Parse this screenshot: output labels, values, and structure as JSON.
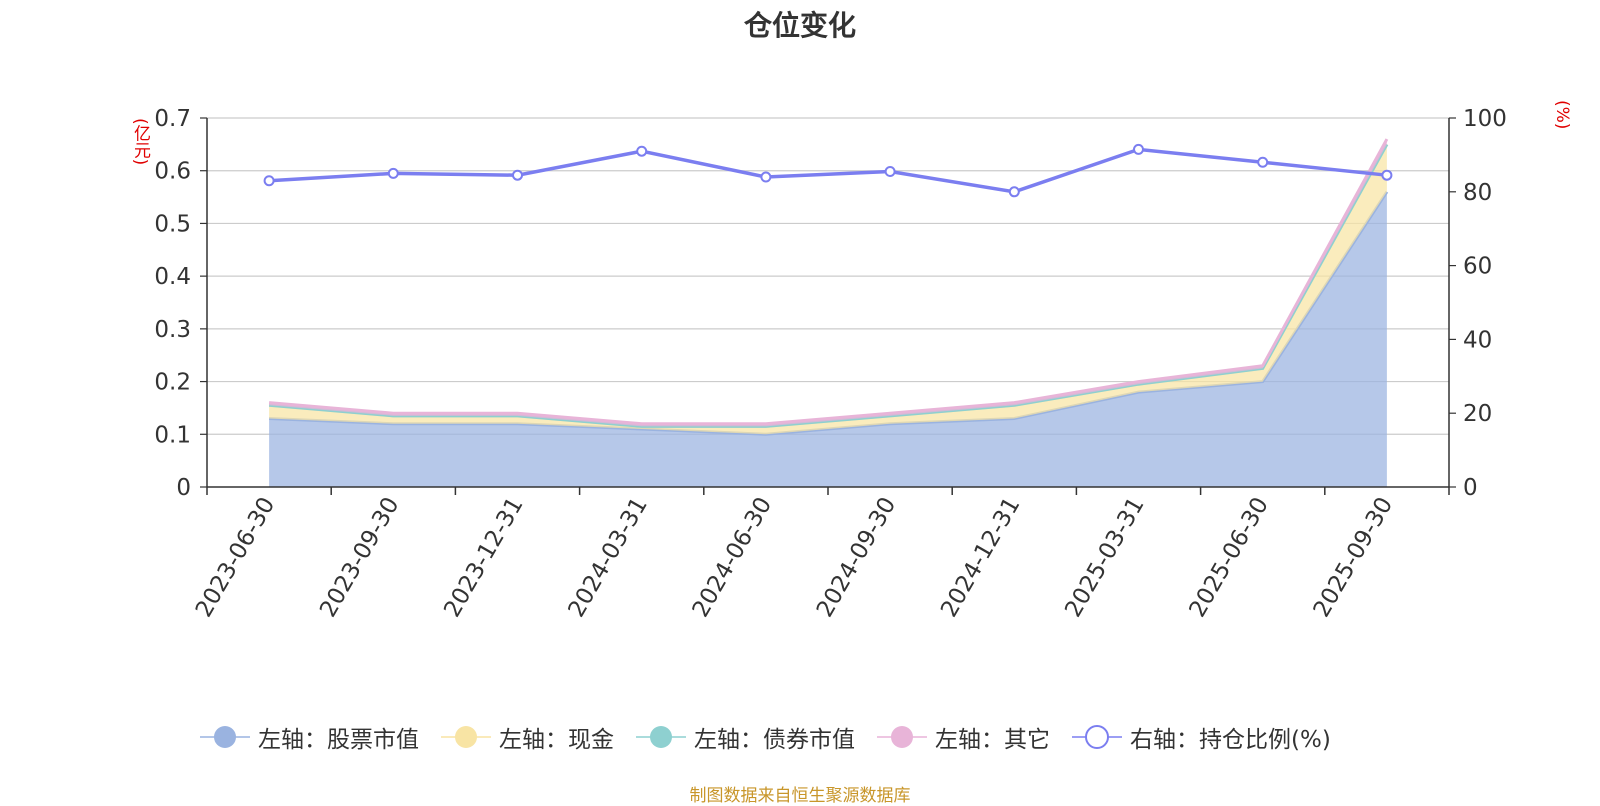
{
  "title": "仓位变化",
  "unit_left": "(亿元)",
  "unit_right": "(%)",
  "footer": "制图数据来自恒生聚源数据库",
  "legend": [
    {
      "label": "左轴：股票市值",
      "color": "#9ab3e0",
      "style": "filled"
    },
    {
      "label": "左轴：现金",
      "color": "#f8e4a4",
      "style": "filled"
    },
    {
      "label": "左轴：债券市值",
      "color": "#8ed0d0",
      "style": "filled"
    },
    {
      "label": "左轴：其它",
      "color": "#e8b4d8",
      "style": "filled"
    },
    {
      "label": "右轴：持仓比例(%)",
      "color": "#7b7ef0",
      "style": "hollow"
    }
  ],
  "chart_data": {
    "type": "area",
    "categories": [
      "2023-06-30",
      "2023-09-30",
      "2023-12-31",
      "2024-03-31",
      "2024-06-30",
      "2024-09-30",
      "2024-12-31",
      "2025-03-31",
      "2025-06-30",
      "2025-09-30"
    ],
    "left_axis": {
      "ylim": [
        0,
        0.7
      ],
      "ticks": [
        "0",
        "0.1",
        "0.2",
        "0.3",
        "0.4",
        "0.5",
        "0.6",
        "0.7"
      ]
    },
    "right_axis": {
      "ylim": [
        0,
        100
      ],
      "ticks": [
        "0",
        "20",
        "40",
        "60",
        "80",
        "100"
      ]
    },
    "stack_series": [
      {
        "name": "左轴：股票市值",
        "color": "#9ab3e0",
        "values": [
          0.13,
          0.12,
          0.12,
          0.11,
          0.1,
          0.12,
          0.13,
          0.18,
          0.2,
          0.56
        ]
      },
      {
        "name": "左轴：现金",
        "color": "#f8e4a4",
        "values": [
          0.025,
          0.015,
          0.015,
          0.005,
          0.015,
          0.015,
          0.025,
          0.015,
          0.025,
          0.09
        ]
      },
      {
        "name": "左轴：债券市值",
        "color": "#8ed0d0",
        "values": [
          0,
          0,
          0,
          0,
          0,
          0,
          0,
          0,
          0,
          0
        ]
      },
      {
        "name": "左轴：其它",
        "color": "#e8b4d8",
        "values": [
          0.005,
          0.005,
          0.005,
          0.005,
          0.005,
          0.005,
          0.005,
          0.005,
          0.005,
          0.01
        ]
      }
    ],
    "line_series": {
      "name": "右轴：持仓比例(%)",
      "color": "#7b7ef0",
      "values": [
        83,
        85,
        84.5,
        91,
        84,
        85.5,
        80,
        91.5,
        88,
        84.5
      ]
    },
    "grid": true,
    "legend_position": "bottom"
  }
}
